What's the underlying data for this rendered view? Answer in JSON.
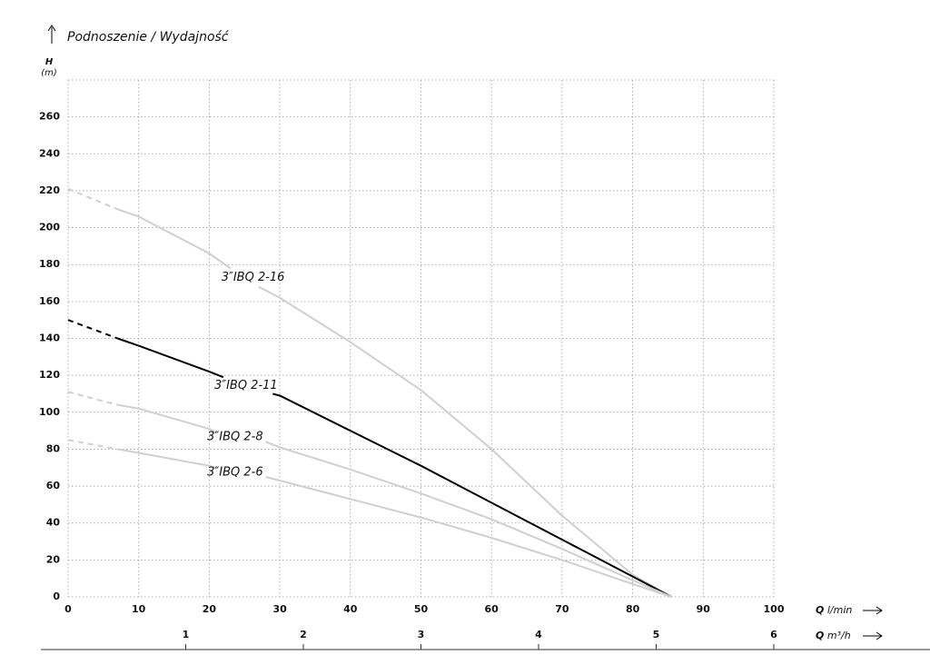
{
  "chart_data": {
    "type": "line",
    "title": "Podnoszenie / Wydajność",
    "y_label": "H",
    "y_unit": "(m)",
    "x_label_symbol": "Q",
    "x_label_unit": "l/min",
    "x2_label_symbol": "Q",
    "x2_label_unit": "m³/h",
    "xlim": [
      0,
      100
    ],
    "xticks": [
      0,
      10,
      20,
      30,
      40,
      50,
      60,
      70,
      80,
      90,
      100
    ],
    "x2lim": [
      0,
      6
    ],
    "x2ticks": [
      1,
      2,
      3,
      4,
      5,
      6
    ],
    "ylim": [
      0,
      280
    ],
    "yticks": [
      0,
      20,
      40,
      60,
      80,
      100,
      120,
      140,
      160,
      180,
      200,
      220,
      240,
      260
    ],
    "grid": true,
    "line_style": "dashed-start",
    "series": [
      {
        "name": "3″IBQ 2-16",
        "color": "#cfcfcf",
        "x": [
          0,
          7,
          10,
          20,
          23,
          null,
          27,
          30,
          40,
          50,
          60,
          70,
          80,
          85.5
        ],
        "values": [
          221,
          210,
          206,
          186,
          178,
          null,
          168,
          162,
          138,
          112,
          80,
          44,
          12,
          0
        ]
      },
      {
        "name": "3″IBQ 2-11",
        "color": "#000000",
        "x": [
          0,
          7,
          10,
          20,
          22,
          null,
          29,
          30,
          40,
          50,
          60,
          70,
          80,
          85.5
        ],
        "values": [
          150,
          140,
          136,
          122,
          119,
          null,
          110,
          109,
          90,
          71,
          51,
          31,
          11,
          0
        ]
      },
      {
        "name": "3″IBQ 2-8",
        "color": "#cfcfcf",
        "x": [
          0,
          7,
          10,
          20,
          21,
          null,
          28,
          30,
          40,
          50,
          60,
          70,
          80,
          85.5
        ],
        "values": [
          111,
          104,
          102,
          91,
          89,
          null,
          84,
          81,
          69,
          56,
          42,
          26,
          9,
          0
        ]
      },
      {
        "name": "3″IBQ 2-6",
        "color": "#cfcfcf",
        "x": [
          0,
          7,
          10,
          20,
          21,
          null,
          28,
          30,
          40,
          50,
          60,
          70,
          80,
          85.5
        ],
        "values": [
          85,
          80,
          78,
          71,
          70,
          null,
          65,
          63,
          53,
          43,
          32,
          20,
          7,
          0
        ]
      }
    ]
  }
}
